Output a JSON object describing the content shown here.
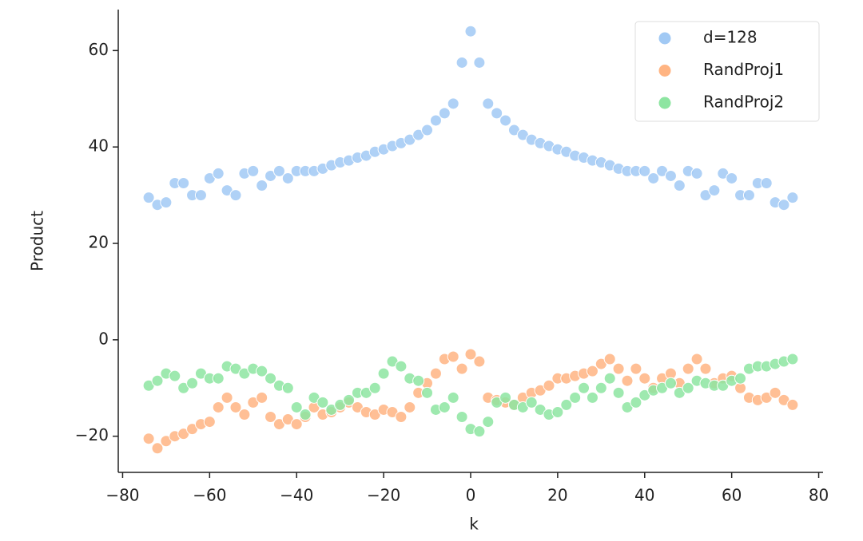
{
  "chart_data": {
    "type": "scatter",
    "xlabel": "k",
    "ylabel": "Product",
    "xlim": [
      -81,
      81
    ],
    "ylim": [
      -27.5,
      68.5
    ],
    "xticks": [
      {
        "value": -80,
        "label": "−80"
      },
      {
        "value": -60,
        "label": "−60"
      },
      {
        "value": -40,
        "label": "−40"
      },
      {
        "value": -20,
        "label": "−20"
      },
      0,
      20,
      40,
      60,
      80
    ],
    "yticks": [
      {
        "value": -20,
        "label": "−20"
      },
      0,
      20,
      40,
      60
    ],
    "legend": "upper right",
    "x": [
      -74,
      -72,
      -70,
      -68,
      -66,
      -64,
      -62,
      -60,
      -58,
      -56,
      -54,
      -52,
      -50,
      -48,
      -46,
      -44,
      -42,
      -40,
      -38,
      -36,
      -34,
      -32,
      -30,
      -28,
      -26,
      -24,
      -22,
      -20,
      -18,
      -16,
      -14,
      -12,
      -10,
      -8,
      -6,
      -4,
      -2,
      0,
      2,
      4,
      6,
      8,
      10,
      12,
      14,
      16,
      18,
      20,
      22,
      24,
      26,
      28,
      30,
      32,
      34,
      36,
      38,
      40,
      42,
      44,
      46,
      48,
      50,
      52,
      54,
      56,
      58,
      60,
      62,
      64,
      66,
      68,
      70,
      72,
      74
    ],
    "series": [
      {
        "name": "d=128",
        "color": "#a1c9f4",
        "values": [
          29.5,
          28,
          28.5,
          32.5,
          32.5,
          30,
          30,
          33.5,
          34.5,
          31,
          30,
          34.5,
          35,
          32,
          34,
          35,
          33.5,
          35,
          35,
          35,
          35.5,
          36.2,
          36.8,
          37.2,
          37.8,
          38.2,
          39,
          39.5,
          40.2,
          40.8,
          41.5,
          42.5,
          43.5,
          45.5,
          47,
          49,
          57.5,
          64,
          57.5,
          49,
          47,
          45.5,
          43.5,
          42.5,
          41.5,
          40.8,
          40.2,
          39.5,
          39,
          38.2,
          37.8,
          37.2,
          36.8,
          36.2,
          35.5,
          35,
          35,
          35,
          33.5,
          35,
          34,
          32,
          35,
          34.5,
          30,
          31,
          34.5,
          33.5,
          30,
          30,
          32.5,
          32.5,
          28.5,
          28,
          29.5
        ]
      },
      {
        "name": "RandProj1",
        "color": "#ffb482",
        "values": [
          -20.5,
          -22.5,
          -21,
          -20,
          -19.5,
          -18.5,
          -17.5,
          -17,
          -14,
          -12,
          -14,
          -15.5,
          -13,
          -12,
          -16,
          -17.5,
          -16.5,
          -17.5,
          -16,
          -14,
          -15.5,
          -15,
          -14,
          -13,
          -14,
          -15,
          -15.5,
          -14.5,
          -15,
          -16,
          -14,
          -11,
          -9,
          -7,
          -4,
          -3.5,
          -6,
          -3,
          -4.5,
          -12,
          -12.5,
          -13,
          -13.5,
          -12,
          -11,
          -10.5,
          -9.5,
          -8,
          -8,
          -7.5,
          -7,
          -6.5,
          -5,
          -4,
          -6,
          -8.5,
          -6,
          -8,
          -10,
          -8,
          -7,
          -9,
          -6,
          -4,
          -6,
          -9,
          -8,
          -7.5,
          -10,
          -12,
          -12.5,
          -12,
          -11,
          -12.5,
          -13.5
        ]
      },
      {
        "name": "RandProj2",
        "color": "#8de5a1",
        "values": [
          -9.5,
          -8.5,
          -7,
          -7.5,
          -10,
          -9,
          -7,
          -8,
          -8,
          -5.5,
          -6,
          -7,
          -6,
          -6.5,
          -8,
          -9.5,
          -10,
          -14,
          -15.5,
          -12,
          -13,
          -14.5,
          -13.5,
          -12.5,
          -11,
          -11,
          -10,
          -7,
          -4.5,
          -5.5,
          -8,
          -8.5,
          -11,
          -14.5,
          -14,
          -12,
          -16,
          -18.5,
          -19,
          -17,
          -13,
          -12,
          -13.5,
          -14,
          -13,
          -14.5,
          -15.5,
          -15,
          -13.5,
          -12,
          -10,
          -12,
          -10,
          -8,
          -11,
          -14,
          -13,
          -11.5,
          -10.5,
          -10,
          -9,
          -11,
          -10,
          -8.5,
          -9,
          -9.5,
          -9.5,
          -8.5,
          -8,
          -6,
          -5.5,
          -5.5,
          -5,
          -4.5,
          -4
        ]
      }
    ]
  }
}
